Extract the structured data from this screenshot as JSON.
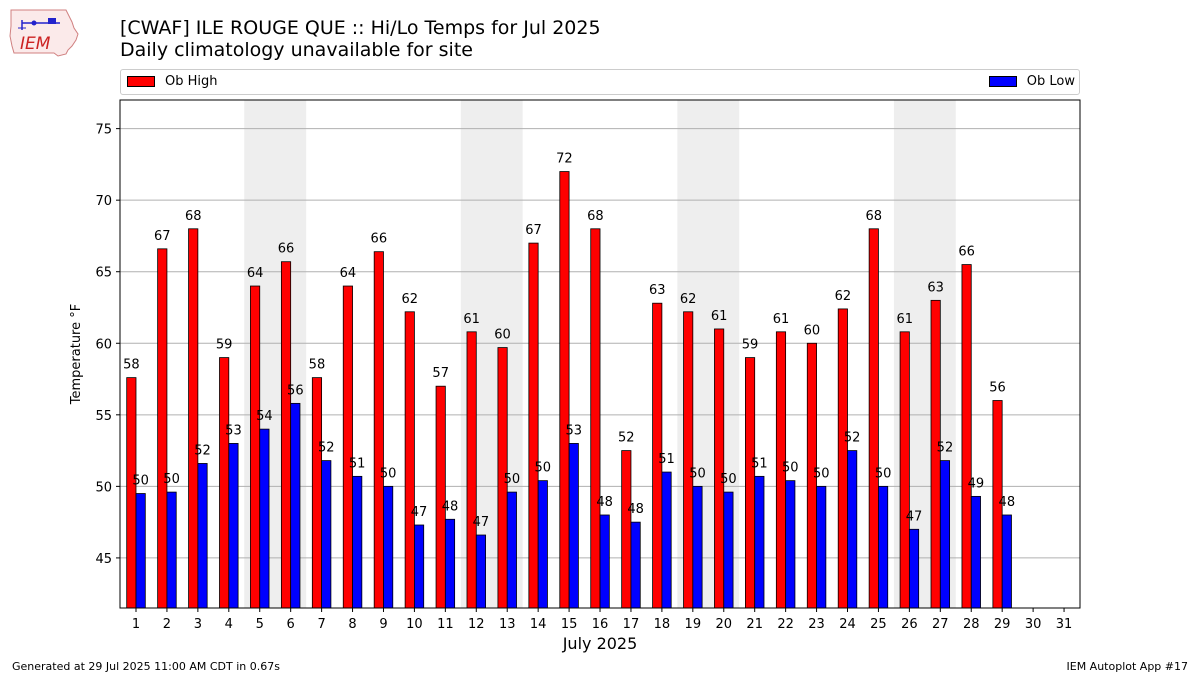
{
  "logo": {
    "text": "IEM"
  },
  "title_line1": "[CWAF] ILE ROUGE  QUE :: Hi/Lo Temps for Jul 2025",
  "title_line2": "Daily climatology unavailable for site",
  "footer_left": "Generated at 29 Jul 2025 11:00 AM CDT in 0.67s",
  "footer_right": "IEM Autoplot App #17",
  "colors": {
    "high": "#ff0000",
    "low": "#0000ff",
    "weekend_shade": "#eeeeee",
    "grid": "#b0b0b0"
  },
  "chart_data": {
    "type": "bar",
    "xlabel": "July 2025",
    "ylabel": "Temperature °F",
    "ylim": [
      41.5,
      77
    ],
    "yticks": [
      45,
      50,
      55,
      60,
      65,
      70,
      75
    ],
    "grid": "horizontal",
    "legend_position": "top",
    "categories": [
      "1",
      "2",
      "3",
      "4",
      "5",
      "6",
      "7",
      "8",
      "9",
      "10",
      "11",
      "12",
      "13",
      "14",
      "15",
      "16",
      "17",
      "18",
      "19",
      "20",
      "21",
      "22",
      "23",
      "24",
      "25",
      "26",
      "27",
      "28",
      "29",
      "30",
      "31"
    ],
    "shaded_days": [
      [
        5,
        6
      ],
      [
        12,
        13
      ],
      [
        19,
        20
      ],
      [
        26,
        27
      ]
    ],
    "series": [
      {
        "name": "Ob High",
        "values": [
          57.6,
          66.6,
          68,
          59,
          64,
          65.7,
          57.6,
          64,
          66.4,
          62.2,
          57,
          60.8,
          59.7,
          67,
          72,
          68,
          52.5,
          62.8,
          62.2,
          61,
          59,
          60.8,
          60,
          62.4,
          68,
          60.8,
          63,
          65.5,
          56,
          null,
          null
        ],
        "labels": [
          "58",
          "67",
          "68",
          "59",
          "64",
          "66",
          "58",
          "64",
          "66",
          "62",
          "57",
          "61",
          "60",
          "67",
          "72",
          "68",
          "52",
          "63",
          "62",
          "61",
          "59",
          "61",
          "60",
          "62",
          "68",
          "61",
          "63",
          "66",
          "56",
          null,
          null
        ]
      },
      {
        "name": "Ob Low",
        "values": [
          49.5,
          49.6,
          51.6,
          53,
          54,
          55.8,
          51.8,
          50.7,
          50,
          47.3,
          47.7,
          46.6,
          49.6,
          50.4,
          53,
          48,
          47.5,
          51,
          50,
          49.6,
          50.7,
          50.4,
          50,
          52.5,
          50,
          47,
          51.8,
          49.3,
          48,
          null,
          null
        ],
        "labels": [
          "50",
          "50",
          "52",
          "53",
          "54",
          "56",
          "52",
          "51",
          "50",
          "47",
          "48",
          "47",
          "50",
          "50",
          "53",
          "48",
          "48",
          "51",
          "50",
          "50",
          "51",
          "50",
          "50",
          "52",
          "50",
          "47",
          "52",
          "49",
          "48",
          null,
          null
        ]
      }
    ]
  }
}
